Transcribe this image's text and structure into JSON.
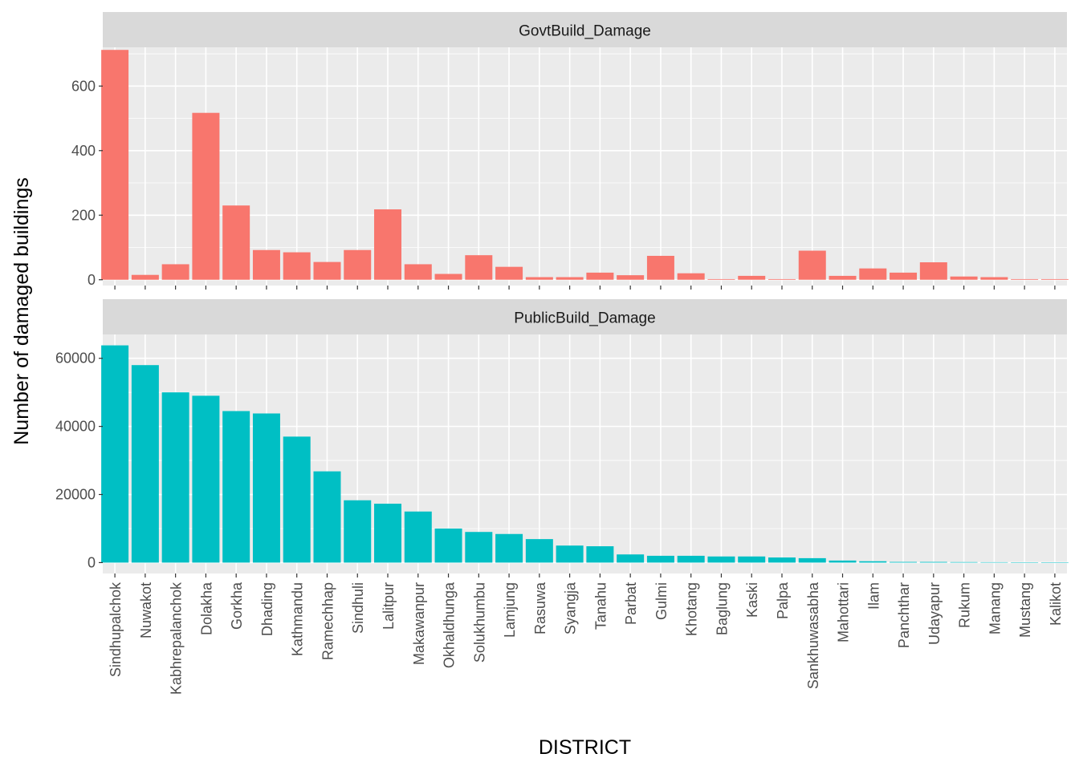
{
  "chart_data": {
    "type": "bar",
    "facets": [
      "GovtBuild_Damage",
      "PublicBuild_Damage"
    ],
    "xlabel": "DISTRICT",
    "ylabel": "Number of damaged buildings",
    "categories": [
      "Sindhupalchok",
      "Nuwakot",
      "Kabhrepalanchok",
      "Dolakha",
      "Gorkha",
      "Dhading",
      "Kathmandu",
      "Ramechhap",
      "Sindhuli",
      "Lalitpur",
      "Makawanpur",
      "Okhaldhunga",
      "Solukhumbu",
      "Lamjung",
      "Rasuwa",
      "Syangja",
      "Tanahu",
      "Parbat",
      "Gulmi",
      "Khotang",
      "Baglung",
      "Kaski",
      "Palpa",
      "Sankhuwasabha",
      "Mahottari",
      "Ilam",
      "Panchthar",
      "Udayapur",
      "Rukum",
      "Manang",
      "Mustang",
      "Kalikot"
    ],
    "series": [
      {
        "name": "GovtBuild_Damage",
        "color": "#F8766D",
        "ylim": [
          -18,
          720
        ],
        "yticks": [
          0,
          200,
          400,
          600
        ],
        "ytick_labels": [
          "0",
          "200",
          "400",
          "600"
        ],
        "values": [
          712,
          15,
          48,
          517,
          230,
          92,
          85,
          55,
          92,
          218,
          48,
          18,
          76,
          40,
          8,
          8,
          22,
          14,
          74,
          20,
          2,
          12,
          2,
          90,
          12,
          35,
          22,
          54,
          10,
          8,
          2,
          2
        ]
      },
      {
        "name": "PublicBuild_Damage",
        "color": "#00BFC4",
        "ylim": [
          -3200,
          67000
        ],
        "yticks": [
          0,
          20000,
          40000,
          60000
        ],
        "ytick_labels": [
          "0",
          "20000",
          "40000",
          "60000"
        ],
        "values": [
          63800,
          58000,
          50000,
          49000,
          44500,
          43800,
          37000,
          26800,
          18300,
          17300,
          15000,
          10000,
          9000,
          8400,
          6900,
          5000,
          4800,
          2400,
          2000,
          2000,
          1800,
          1800,
          1500,
          1300,
          600,
          400,
          200,
          200,
          150,
          120,
          100,
          20
        ]
      }
    ],
    "grid": true,
    "legend": "none"
  }
}
